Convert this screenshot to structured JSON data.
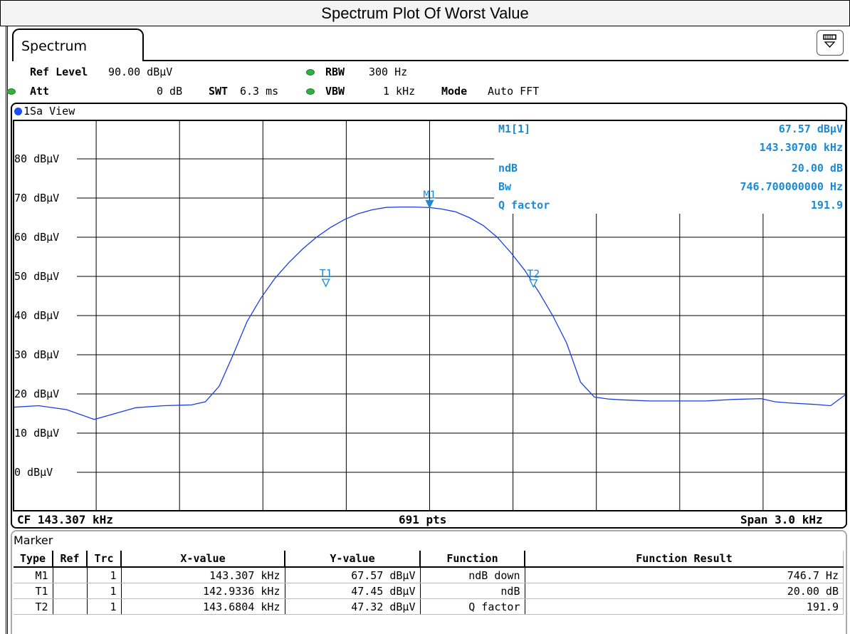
{
  "title": "Spectrum Plot Of Worst Value",
  "tab": {
    "label": "Spectrum"
  },
  "header": {
    "ref_level_label": "Ref Level",
    "ref_level_value": "90.00 dBµV",
    "att_label": "Att",
    "att_value": "0 dB",
    "swt_label": "SWT",
    "swt_value": "6.3 ms",
    "rbw_label": "RBW",
    "rbw_value": "300 Hz",
    "vbw_label": "VBW",
    "vbw_value": "1 kHz",
    "mode_label": "Mode",
    "mode_value": "Auto FFT"
  },
  "view_label": "1Sa View",
  "footer": {
    "cf": "CF 143.307 kHz",
    "pts": "691 pts",
    "span": "Span 3.0 kHz"
  },
  "marker_info": {
    "name": "M1[1]",
    "level": "67.57 dBµV",
    "freq": "143.30700 kHz",
    "rows": [
      {
        "label": "ndB",
        "value": "20.00 dB"
      },
      {
        "label": "Bw",
        "value": "746.700000000 Hz"
      },
      {
        "label": "Q factor",
        "value": "191.9"
      }
    ]
  },
  "marker_table": {
    "title": "Marker",
    "headers": [
      "Type",
      "Ref",
      "Trc",
      "X-value",
      "Y-value",
      "Function",
      "Function Result"
    ],
    "rows": [
      [
        "M1",
        "",
        "1",
        "143.307 kHz",
        "67.57 dBµV",
        "ndB down",
        "746.7 Hz"
      ],
      [
        "T1",
        "",
        "1",
        "142.9336 kHz",
        "47.45 dBµV",
        "ndB",
        "20.00 dB"
      ],
      [
        "T2",
        "",
        "1",
        "143.6804 kHz",
        "47.32 dBµV",
        "Q factor",
        "191.9"
      ]
    ]
  },
  "colors": {
    "trace": "#1a3ee6",
    "marker": "#1a8ad4",
    "led": "#2fb140"
  },
  "chart_data": {
    "type": "line",
    "xlabel": "",
    "ylabel": "",
    "xlim": [
      141.807,
      144.807
    ],
    "ylim": [
      -10,
      90
    ],
    "ytick_values": [
      80,
      70,
      60,
      50,
      40,
      30,
      20,
      10,
      0
    ],
    "ytick_labels": [
      "80 dBµV",
      "70 dBµV",
      "60 dBµV",
      "50 dBµV",
      "40 dBµV",
      "30 dBµV",
      "20 dBµV",
      "10 dBµV",
      "0 dBµV"
    ],
    "x_divisions": 10,
    "grid": true,
    "series": [
      {
        "x": [
          141.807,
          141.9,
          142.0,
          142.1,
          142.2,
          142.25,
          142.35,
          142.45,
          142.5,
          142.55,
          142.6,
          142.65,
          142.7,
          142.75,
          142.8,
          142.85,
          142.9,
          142.95,
          143.0,
          143.05,
          143.1,
          143.15,
          143.2,
          143.25,
          143.307,
          143.35,
          143.4,
          143.45,
          143.5,
          143.55,
          143.6,
          143.65,
          143.7,
          143.75,
          143.8,
          143.85,
          143.9,
          143.95,
          144.0,
          144.1,
          144.2,
          144.3,
          144.4,
          144.5,
          144.55,
          144.6,
          144.7,
          144.75,
          144.807
        ],
        "y": [
          16.6,
          17.0,
          16.0,
          13.5,
          15.5,
          16.5,
          17.0,
          17.2,
          18.0,
          22.0,
          30.0,
          38.5,
          44.5,
          49.5,
          53.5,
          57.0,
          60.0,
          62.5,
          64.5,
          66.0,
          67.0,
          67.6,
          67.7,
          67.7,
          67.57,
          67.2,
          66.5,
          65.0,
          63.0,
          60.0,
          56.0,
          51.5,
          46.0,
          40.0,
          33.0,
          23.0,
          19.2,
          18.7,
          18.5,
          18.2,
          18.2,
          18.2,
          18.6,
          18.8,
          18.0,
          17.7,
          17.3,
          17.0,
          20.0
        ]
      }
    ],
    "markers": [
      {
        "name": "M1",
        "x": 143.307,
        "y": 67.57,
        "filled": true
      },
      {
        "name": "T1",
        "x": 142.9336,
        "y": 47.45,
        "filled": false
      },
      {
        "name": "T2",
        "x": 143.6804,
        "y": 47.32,
        "filled": false
      }
    ]
  }
}
